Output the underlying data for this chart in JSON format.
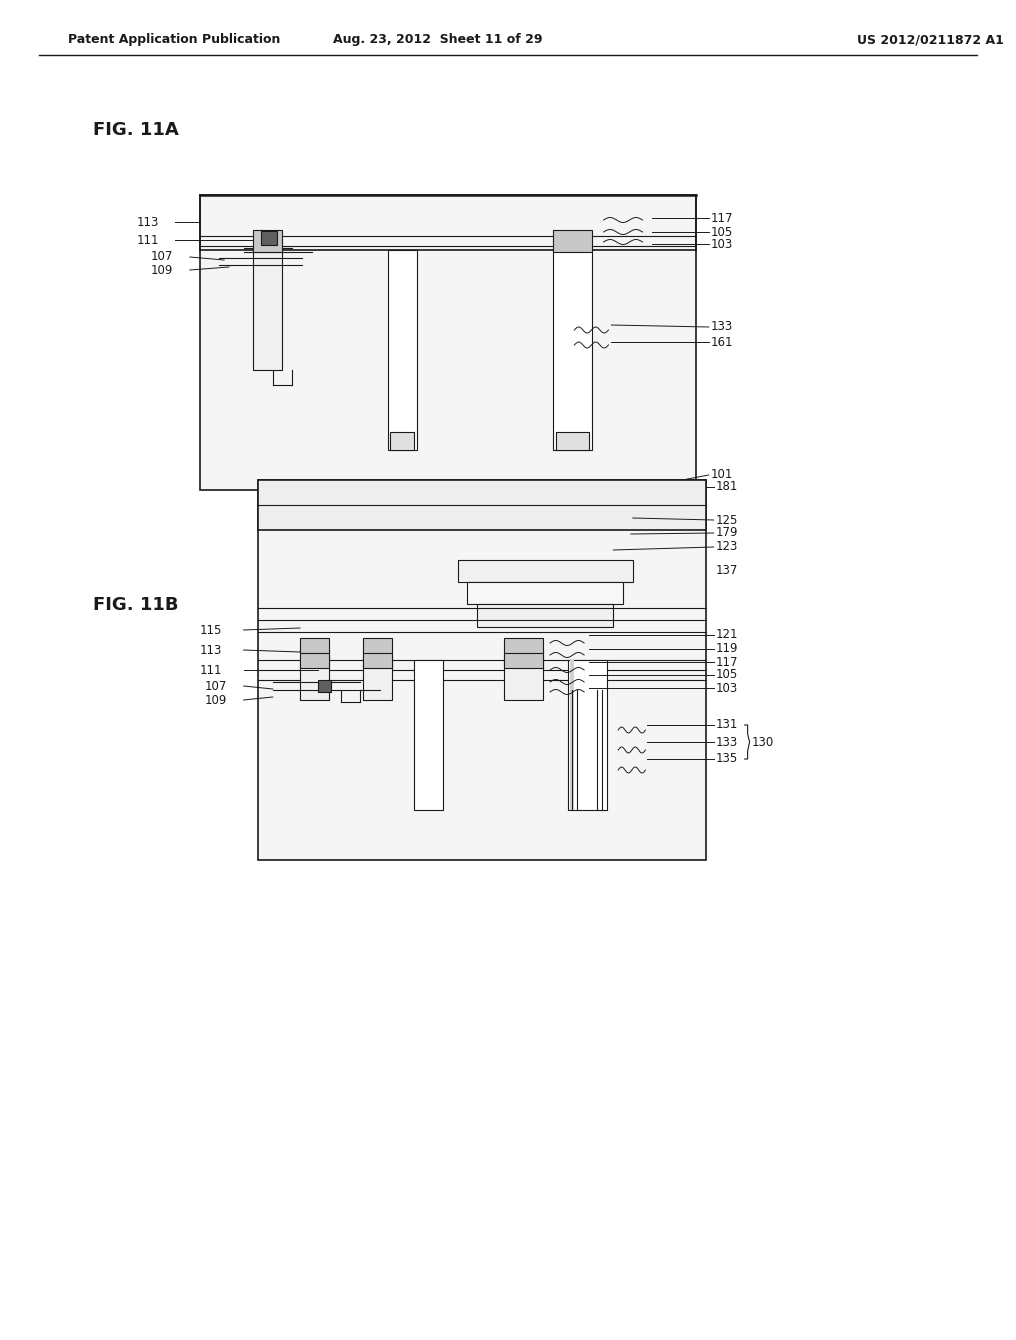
{
  "bg_color": "#ffffff",
  "header_left": "Patent Application Publication",
  "header_mid": "Aug. 23, 2012  Sheet 11 of 29",
  "header_right": "US 2012/0211872 A1",
  "fig11a_label": "FIG. 11A",
  "fig11b_label": "FIG. 11B",
  "line_color": "#1a1a1a",
  "gray_fill": "#c8c8c8",
  "light_gray": "#e8e8e8",
  "dark_fill": "#606060",
  "white_fill": "#ffffff"
}
